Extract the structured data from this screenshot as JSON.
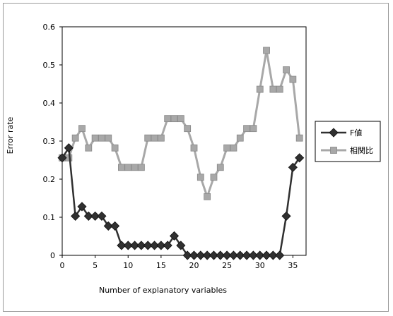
{
  "chart_data": {
    "type": "line",
    "title": "",
    "xlabel": "Number of explanatory variables",
    "ylabel": "Error rate",
    "xlim": [
      0,
      37
    ],
    "ylim": [
      0,
      0.6
    ],
    "xticks": [
      0,
      5,
      10,
      15,
      20,
      25,
      30,
      35
    ],
    "yticks": [
      0,
      0.1,
      0.2,
      0.3,
      0.4,
      0.5,
      0.6
    ],
    "xtick_labels": [
      "0",
      "5",
      "10",
      "15",
      "20",
      "25",
      "30",
      "35"
    ],
    "ytick_labels": [
      "0",
      "0.1",
      "0.2",
      "0.3",
      "0.4",
      "0.5",
      "0.6"
    ],
    "grid": false,
    "legend_position": "right",
    "series": [
      {
        "name": "F値",
        "color": "#303030",
        "marker": "diamond",
        "x": [
          0,
          1,
          2,
          3,
          4,
          5,
          6,
          7,
          8,
          9,
          10,
          11,
          12,
          13,
          14,
          15,
          16,
          17,
          18,
          19,
          20,
          21,
          22,
          23,
          24,
          25,
          26,
          27,
          28,
          29,
          30,
          31,
          32,
          33,
          34,
          35,
          36
        ],
        "values": [
          0.256,
          0.282,
          0.103,
          0.128,
          0.103,
          0.103,
          0.103,
          0.077,
          0.077,
          0.026,
          0.026,
          0.026,
          0.026,
          0.026,
          0.026,
          0.026,
          0.026,
          0.051,
          0.026,
          0,
          0,
          0,
          0,
          0,
          0,
          0,
          0,
          0,
          0,
          0,
          0,
          0,
          0,
          0,
          0.103,
          0.231,
          0.256
        ]
      },
      {
        "name": "相関比",
        "color": "#a8a8a8",
        "marker": "square",
        "x": [
          0,
          1,
          2,
          3,
          4,
          5,
          6,
          7,
          8,
          9,
          10,
          11,
          12,
          13,
          14,
          15,
          16,
          17,
          18,
          19,
          20,
          21,
          22,
          23,
          24,
          25,
          26,
          27,
          28,
          29,
          30,
          31,
          32,
          33,
          34,
          35,
          36
        ],
        "values": [
          0.256,
          0.256,
          0.308,
          0.333,
          0.282,
          0.308,
          0.308,
          0.308,
          0.282,
          0.231,
          0.231,
          0.231,
          0.231,
          0.308,
          0.308,
          0.308,
          0.359,
          0.359,
          0.359,
          0.333,
          0.282,
          0.205,
          0.154,
          0.205,
          0.231,
          0.282,
          0.282,
          0.308,
          0.333,
          0.333,
          0.436,
          0.538,
          0.436,
          0.436,
          0.487,
          0.462,
          0.308
        ]
      }
    ]
  }
}
